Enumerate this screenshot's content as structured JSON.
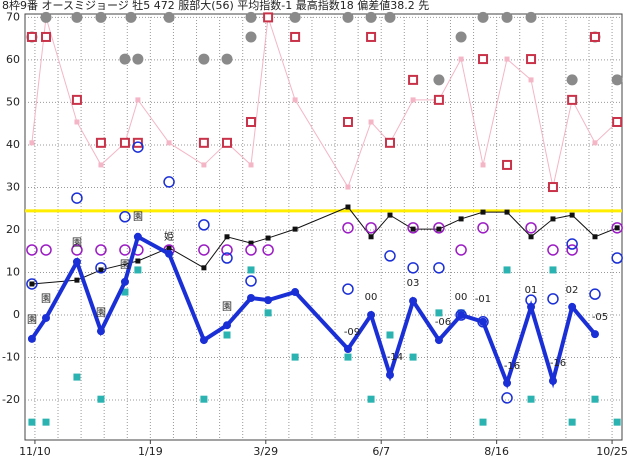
{
  "chart_data": {
    "type": "line",
    "title": "8枠9番 オースミジョージ 牡5 472 服部大(56) 平均指数-1 最高指数18 偏差値38.2 先",
    "xlim": [
      -0.43,
      25.43
    ],
    "ylim": [
      -29.4,
      70.8
    ],
    "xticks": [
      {
        "value": 0,
        "label": "11/10"
      },
      {
        "value": 5,
        "label": "1/19"
      },
      {
        "value": 10,
        "label": "3/29"
      },
      {
        "value": 15,
        "label": "6/7"
      },
      {
        "value": 20,
        "label": "8/16"
      },
      {
        "value": 25,
        "label": "10/25"
      }
    ],
    "x_gridlines": [
      0,
      1,
      2,
      3,
      4,
      5,
      6,
      7,
      8,
      9,
      10,
      11,
      12,
      13,
      14,
      15,
      16,
      17,
      18,
      19,
      20,
      21,
      22,
      23,
      24,
      25
    ],
    "yticks": [
      -20,
      -10,
      0,
      10,
      20,
      30,
      40,
      50,
      60,
      70
    ],
    "grid": true,
    "reference_line": {
      "value": 24.5,
      "color": "#ffee00"
    },
    "series": [
      {
        "style": "line",
        "color": "#f4b6c6",
        "width": 1,
        "x": [
          -0.13,
          0.48,
          1.82,
          2.86,
          3.9,
          4.46,
          5.81,
          7.32,
          8.32,
          9.36,
          10.1,
          11.27,
          13.56,
          14.56,
          15.38,
          16.38,
          17.5,
          18.46,
          19.41,
          20.45,
          21.49,
          22.44,
          23.27,
          24.26,
          25.22
        ],
        "values": [
          40.5,
          70,
          45.4,
          35.3,
          40.5,
          50.6,
          40.5,
          35.3,
          40.5,
          35.3,
          70,
          50.6,
          30.1,
          45.4,
          40.5,
          50.6,
          50.6,
          60.2,
          35.3,
          60.2,
          55.3,
          30.1,
          50.6,
          40.5,
          45.4
        ]
      },
      {
        "style": "line",
        "color": "#111111",
        "width": 1,
        "x": [
          -0.13,
          1.82,
          2.86,
          4.46,
          5.81,
          7.32,
          8.32,
          9.36,
          10.1,
          11.27,
          13.56,
          14.56,
          15.38,
          16.38,
          17.5,
          18.46,
          19.41,
          20.45,
          21.49,
          22.44,
          23.27,
          24.26,
          25.22
        ],
        "values": [
          7.3,
          8.2,
          10.6,
          12.7,
          15.8,
          11.1,
          18.4,
          16.9,
          18.1,
          20.2,
          25.4,
          18.4,
          23.5,
          20.2,
          20.2,
          22.6,
          24.2,
          24.2,
          18.4,
          22.6,
          23.5,
          18.4,
          20.5
        ]
      },
      {
        "style": "circle",
        "color": "#8a8a8a",
        "x": [
          -0.13,
          0.48,
          1.82,
          2.86,
          3.9,
          4.46,
          4.16,
          5.81,
          7.32,
          8.32,
          9.36,
          9.36,
          11.27,
          13.56,
          14.56,
          15.38,
          17.5,
          18.46,
          19.41,
          20.45,
          21.49,
          23.27,
          24.26,
          25.22
        ],
        "values": [
          65.4,
          70,
          70,
          70,
          60.2,
          60.2,
          70,
          70,
          60.2,
          60.2,
          65.4,
          70,
          70,
          70,
          70,
          70,
          55.3,
          65.4,
          70,
          70,
          70,
          55.3,
          65.4,
          55.3
        ]
      },
      {
        "style": "hollow-square",
        "color": "#c8334a",
        "x": [
          -0.13,
          0.48,
          1.82,
          2.86,
          3.9,
          4.46,
          7.32,
          8.32,
          9.36,
          10.1,
          11.27,
          13.56,
          14.56,
          15.38,
          16.38,
          17.5,
          19.41,
          20.45,
          21.49,
          22.44,
          23.27,
          24.26,
          25.22
        ],
        "values": [
          65.4,
          65.4,
          50.6,
          40.5,
          40.5,
          40.5,
          40.5,
          40.5,
          45.4,
          70,
          65.4,
          45.4,
          65.4,
          40.5,
          55.3,
          50.6,
          60.2,
          35.3,
          60.2,
          30.1,
          50.6,
          65.4,
          45.4
        ]
      },
      {
        "style": "hollow-circle",
        "color": "#9b1bc4",
        "x": [
          -0.13,
          0.48,
          1.82,
          2.86,
          3.9,
          4.46,
          5.81,
          7.32,
          8.32,
          9.36,
          10.1,
          13.56,
          14.56,
          16.38,
          17.5,
          18.46,
          19.41,
          21.49,
          22.44,
          23.27,
          25.22
        ],
        "values": [
          15.3,
          15.3,
          15.3,
          15.3,
          15.3,
          15.3,
          15.3,
          15.3,
          15.3,
          15.3,
          15.3,
          20.5,
          20.5,
          20.5,
          20.5,
          15.3,
          20.5,
          20.5,
          15.3,
          15.3,
          20.5
        ]
      },
      {
        "style": "square",
        "color": "#2ab3b0",
        "x": [
          -0.13,
          0.48,
          1.82,
          2.86,
          3.9,
          4.46,
          7.32,
          8.32,
          9.36,
          10.1,
          11.27,
          13.56,
          14.56,
          15.38,
          16.38,
          17.5,
          18.46,
          19.41,
          20.45,
          21.49,
          22.44,
          23.27,
          24.26,
          25.22
        ],
        "values": [
          -25.2,
          -25.2,
          -14.6,
          -19.8,
          5.4,
          10.6,
          -19.8,
          -4.7,
          10.6,
          0.5,
          -9.9,
          -9.9,
          -19.8,
          -4.7,
          -9.9,
          0.5,
          0.5,
          -25.2,
          10.6,
          -19.8,
          10.6,
          -25.2,
          -19.8,
          -25.2
        ]
      },
      {
        "style": "hollow-circle",
        "color": "#1a2fd6",
        "x": [
          -0.13,
          1.82,
          2.86,
          3.9,
          4.46,
          5.81,
          7.32,
          8.32,
          9.36,
          13.56,
          15.38,
          16.38,
          17.5,
          18.46,
          19.41,
          20.45,
          21.49,
          22.44,
          23.27,
          24.26,
          25.22
        ],
        "values": [
          7.3,
          27.5,
          11.1,
          23.1,
          39.5,
          31.3,
          21.2,
          13.4,
          8.0,
          6.1,
          13.9,
          11.1,
          11.1,
          0,
          -1.6,
          -19.5,
          3.5,
          3.8,
          16.7,
          4.9,
          13.4
        ]
      },
      {
        "style": "line",
        "color": "#1a2fd6",
        "width": 4,
        "marker": "circle",
        "x": [
          -0.13,
          0.48,
          1.82,
          2.86,
          3.9,
          4.46,
          5.81,
          7.32,
          8.32,
          9.36,
          10.1,
          11.27,
          13.56,
          14.56,
          15.38,
          16.38,
          17.5,
          18.46,
          19.41,
          20.45,
          21.49,
          22.44,
          23.27,
          24.26
        ],
        "values": [
          -5.6,
          -0.7,
          12.5,
          -3.8,
          7.8,
          18.4,
          14.4,
          -5.9,
          -2.4,
          4.0,
          3.5,
          5.4,
          -8.0,
          0,
          -14.1,
          3.3,
          -5.9,
          0,
          -1.6,
          -16.0,
          1.9,
          -15.5,
          1.9,
          -4.5
        ]
      }
    ],
    "annotations": [
      "-09",
      "00",
      "-14",
      "03",
      "-06",
      "00",
      "-01",
      "-16",
      "01",
      "-16",
      "02",
      "-05",
      "姫",
      "園",
      "園",
      "園",
      "園",
      "園",
      "園",
      "園"
    ]
  }
}
